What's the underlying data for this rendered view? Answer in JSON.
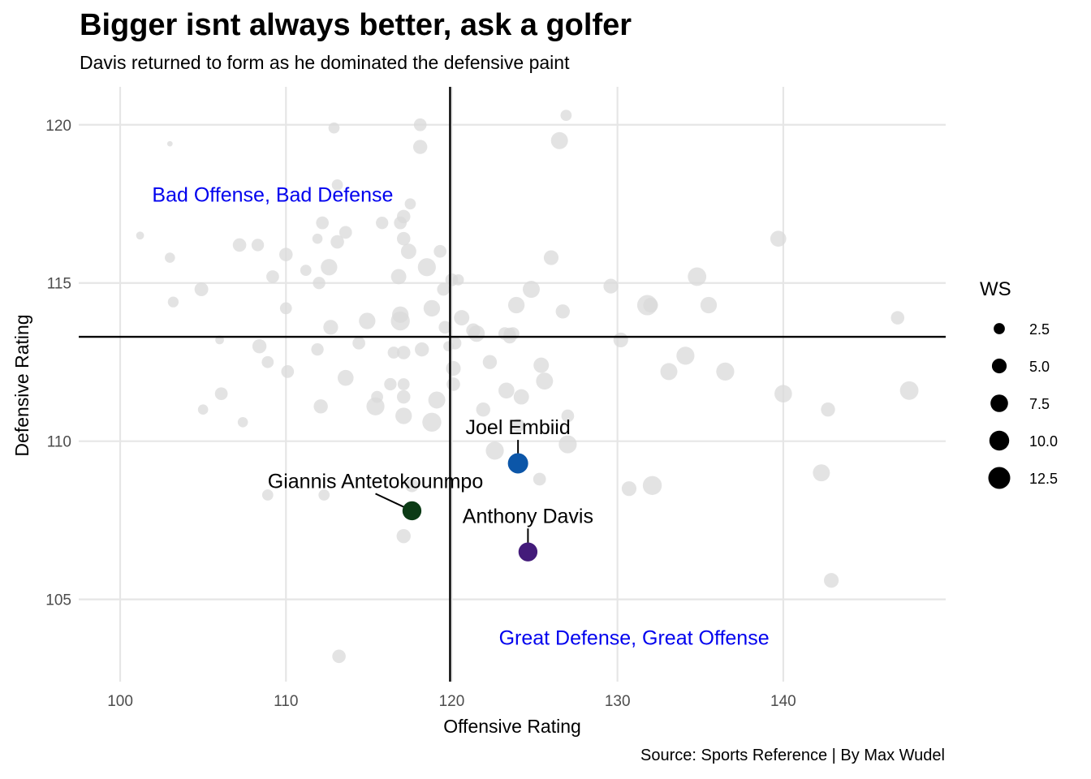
{
  "chart_data": {
    "type": "scatter",
    "title": "Bigger isnt always better, ask a golfer",
    "subtitle": "Davis returned to form as he dominated the defensive paint",
    "caption": "Source: Sports Reference | By Max Wudel",
    "xlabel": "Offensive Rating",
    "ylabel": "Defensive Rating",
    "xlim": [
      97.5,
      149.8
    ],
    "ylim": [
      102.4,
      121.2
    ],
    "x_ticks": [
      100,
      110,
      120,
      130,
      140
    ],
    "y_ticks": [
      105,
      110,
      115,
      120
    ],
    "grid": true,
    "reference_lines": {
      "x": 119.9,
      "y": 113.3
    },
    "quadrant_labels": [
      {
        "text": "Bad Offense, Bad Defense",
        "x": 109.2,
        "y": 117.8
      },
      {
        "text": "Great Defense, Great Offense",
        "x": 131.0,
        "y": 103.8
      }
    ],
    "legend": {
      "title": "WS",
      "position": "right",
      "entries": [
        {
          "label": "2.5",
          "ws": 2.5
        },
        {
          "label": "5.0",
          "ws": 5.0
        },
        {
          "label": "7.5",
          "ws": 7.5
        },
        {
          "label": "10.0",
          "ws": 10.0
        },
        {
          "label": "12.5",
          "ws": 12.5
        }
      ]
    },
    "colors": {
      "background_points": "#d9d9d9",
      "Joel Embiid": "#0c56a8",
      "Giannis Antetokounmpo": "#0c3b16",
      "Anthony Davis": "#431b7a",
      "quadrant_text": "#0000ee"
    },
    "highlighted": [
      {
        "name": "Joel Embiid",
        "x": 124.0,
        "y": 109.3,
        "ws": 10.5,
        "label_x": 124.0,
        "label_y": 110.4
      },
      {
        "name": "Giannis Antetokounmpo",
        "x": 117.6,
        "y": 107.8,
        "ws": 9.0,
        "label_x": 115.4,
        "label_y": 108.7
      },
      {
        "name": "Anthony Davis",
        "x": 124.6,
        "y": 106.5,
        "ws": 9.0,
        "label_x": 124.6,
        "label_y": 107.6
      }
    ],
    "series": [
      {
        "name": "",
        "points": [
          [
            103.0,
            119.4,
            0.3
          ],
          [
            101.2,
            116.5,
            1.0
          ],
          [
            103.0,
            115.8,
            2.0
          ],
          [
            103.2,
            114.4,
            2.3
          ],
          [
            104.9,
            114.8,
            4.2
          ],
          [
            105.0,
            111.0,
            2.0
          ],
          [
            106.0,
            113.2,
            1.3
          ],
          [
            106.1,
            111.5,
            3.5
          ],
          [
            107.4,
            110.6,
            2.0
          ],
          [
            107.2,
            116.2,
            4.0
          ],
          [
            108.3,
            116.2,
            3.3
          ],
          [
            108.4,
            113.0,
            4.5
          ],
          [
            108.9,
            112.5,
            3.0
          ],
          [
            108.9,
            108.3,
            2.5
          ],
          [
            109.2,
            115.2,
            3.5
          ],
          [
            110.0,
            115.9,
            4.0
          ],
          [
            110.0,
            114.2,
            3.0
          ],
          [
            110.1,
            112.2,
            3.5
          ],
          [
            111.2,
            115.4,
            2.5
          ],
          [
            111.9,
            116.4,
            2.0
          ],
          [
            112.0,
            115.0,
            3.3
          ],
          [
            111.9,
            112.9,
            3.3
          ],
          [
            112.1,
            111.1,
            4.5
          ],
          [
            112.2,
            116.9,
            3.5
          ],
          [
            112.3,
            108.3,
            2.5
          ],
          [
            112.6,
            115.5,
            6.5
          ],
          [
            112.9,
            119.9,
            2.5
          ],
          [
            112.7,
            113.6,
            5.0
          ],
          [
            113.1,
            118.1,
            2.5
          ],
          [
            113.1,
            116.3,
            4.0
          ],
          [
            113.2,
            103.2,
            4.0
          ],
          [
            113.6,
            112.0,
            6.0
          ],
          [
            113.6,
            116.6,
            3.5
          ],
          [
            114.4,
            113.1,
            3.5
          ],
          [
            114.9,
            113.8,
            6.5
          ],
          [
            115.5,
            111.4,
            3.0
          ],
          [
            115.4,
            111.1,
            8.0
          ],
          [
            115.8,
            116.9,
            3.3
          ],
          [
            116.3,
            111.8,
            3.3
          ],
          [
            116.5,
            112.8,
            3.0
          ],
          [
            116.8,
            115.2,
            5.5
          ],
          [
            116.9,
            114.0,
            6.5
          ],
          [
            116.9,
            113.8,
            9.0
          ],
          [
            116.9,
            116.9,
            3.5
          ],
          [
            117.1,
            117.1,
            4.0
          ],
          [
            117.1,
            116.4,
            4.0
          ],
          [
            117.1,
            111.8,
            3.0
          ],
          [
            117.1,
            111.4,
            4.0
          ],
          [
            117.1,
            112.8,
            4.0
          ],
          [
            117.1,
            110.8,
            6.5
          ],
          [
            117.1,
            107.0,
            4.5
          ],
          [
            117.4,
            116.0,
            5.5
          ],
          [
            117.5,
            117.5,
            2.5
          ],
          [
            117.6,
            108.6,
            4.0
          ],
          [
            118.1,
            119.3,
            4.5
          ],
          [
            118.1,
            120.0,
            3.5
          ],
          [
            118.2,
            112.9,
            4.5
          ],
          [
            118.5,
            115.5,
            8.0
          ],
          [
            118.8,
            114.2,
            6.5
          ],
          [
            118.8,
            110.6,
            9.0
          ],
          [
            119.1,
            111.3,
            7.0
          ],
          [
            119.3,
            116.0,
            3.5
          ],
          [
            119.5,
            114.8,
            3.5
          ],
          [
            119.6,
            113.6,
            3.5
          ],
          [
            119.8,
            113.0,
            2.0
          ],
          [
            120.0,
            115.1,
            3.5
          ],
          [
            120.1,
            112.3,
            5.0
          ],
          [
            120.1,
            111.8,
            4.0
          ],
          [
            120.2,
            113.1,
            3.5
          ],
          [
            120.4,
            115.1,
            2.5
          ],
          [
            120.6,
            113.9,
            5.5
          ],
          [
            121.3,
            113.5,
            4.5
          ],
          [
            121.5,
            113.4,
            6.5
          ],
          [
            121.9,
            111.0,
            4.5
          ],
          [
            122.3,
            112.5,
            4.5
          ],
          [
            122.6,
            109.7,
            8.0
          ],
          [
            123.2,
            113.4,
            3.5
          ],
          [
            123.3,
            111.6,
            6.0
          ],
          [
            123.5,
            113.3,
            4.0
          ],
          [
            123.5,
            113.4,
            3.0
          ],
          [
            123.7,
            113.4,
            3.5
          ],
          [
            123.9,
            114.3,
            6.5
          ],
          [
            124.0,
            110.5,
            4.0
          ],
          [
            124.2,
            111.4,
            5.5
          ],
          [
            124.8,
            114.8,
            7.0
          ],
          [
            125.3,
            108.8,
            3.5
          ],
          [
            125.4,
            112.4,
            5.5
          ],
          [
            125.6,
            111.9,
            7.0
          ],
          [
            126.0,
            115.8,
            5.0
          ],
          [
            126.5,
            119.5,
            7.0
          ],
          [
            126.7,
            114.1,
            4.5
          ],
          [
            126.9,
            120.3,
            2.5
          ],
          [
            127.0,
            110.8,
            3.5
          ],
          [
            127.0,
            109.9,
            8.0
          ],
          [
            129.6,
            114.9,
            5.0
          ],
          [
            130.2,
            113.2,
            5.0
          ],
          [
            130.7,
            108.5,
            5.0
          ],
          [
            131.8,
            114.3,
            10.5
          ],
          [
            132.0,
            114.3,
            5.0
          ],
          [
            132.1,
            108.6,
            9.0
          ],
          [
            133.1,
            112.2,
            7.0
          ],
          [
            134.1,
            112.7,
            8.0
          ],
          [
            134.8,
            115.2,
            8.5
          ],
          [
            135.5,
            114.3,
            6.5
          ],
          [
            136.5,
            112.2,
            8.0
          ],
          [
            139.7,
            116.4,
            6.0
          ],
          [
            140.0,
            111.5,
            7.5
          ],
          [
            142.3,
            109.0,
            7.0
          ],
          [
            142.7,
            111.0,
            4.5
          ],
          [
            142.9,
            105.6,
            5.0
          ],
          [
            146.9,
            113.9,
            4.0
          ],
          [
            147.6,
            111.6,
            8.5
          ]
        ]
      }
    ]
  }
}
